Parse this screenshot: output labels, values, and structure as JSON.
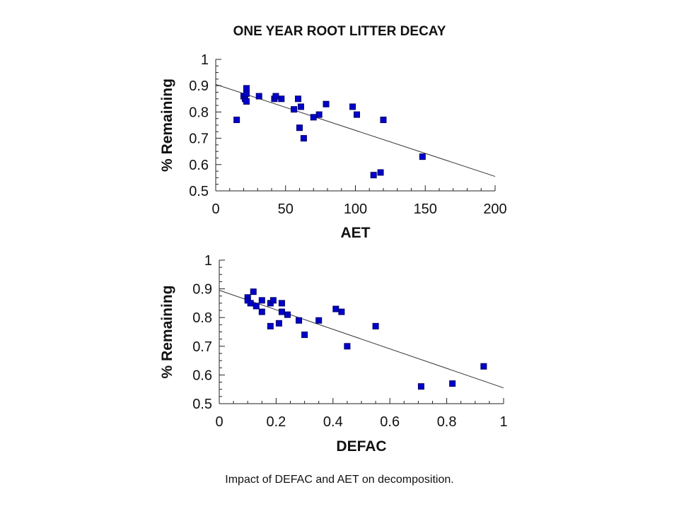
{
  "title": "ONE YEAR ROOT LITTER DECAY",
  "caption": "Impact of DEFAC and AET on decomposition.",
  "colors": {
    "marker": "#0000cc",
    "marker_edge": "#000066",
    "axis": "#222222"
  },
  "chart_data": [
    {
      "type": "scatter",
      "xlabel": "AET",
      "ylabel": "% Remaining",
      "xlim": [
        0,
        200
      ],
      "ylim": [
        0.5,
        1
      ],
      "xticks": [
        "0",
        "50",
        "100",
        "150",
        "200"
      ],
      "yticks": [
        "0.5",
        "0.6",
        "0.7",
        "0.8",
        "0.9",
        "1"
      ],
      "xtick_values": [
        0,
        50,
        100,
        150,
        200
      ],
      "ytick_values": [
        0.5,
        0.6,
        0.7,
        0.8,
        0.9,
        1
      ],
      "minor_x_step": 10,
      "minor_y_step": 0.025,
      "points": [
        [
          15,
          0.77
        ],
        [
          20,
          0.86
        ],
        [
          21,
          0.85
        ],
        [
          22,
          0.87
        ],
        [
          22,
          0.89
        ],
        [
          22,
          0.84
        ],
        [
          31,
          0.86
        ],
        [
          42,
          0.85
        ],
        [
          43,
          0.86
        ],
        [
          47,
          0.85
        ],
        [
          56,
          0.81
        ],
        [
          59,
          0.85
        ],
        [
          60,
          0.74
        ],
        [
          61,
          0.82
        ],
        [
          63,
          0.7
        ],
        [
          70,
          0.78
        ],
        [
          74,
          0.79
        ],
        [
          79,
          0.83
        ],
        [
          98,
          0.82
        ],
        [
          101,
          0.79
        ],
        [
          113,
          0.56
        ],
        [
          118,
          0.57
        ],
        [
          120,
          0.77
        ],
        [
          148,
          0.63
        ]
      ],
      "trend_line": [
        [
          0,
          0.905
        ],
        [
          200,
          0.555
        ]
      ]
    },
    {
      "type": "scatter",
      "xlabel": "DEFAC",
      "ylabel": "% Remaining",
      "xlim": [
        0,
        1
      ],
      "ylim": [
        0.5,
        1
      ],
      "xticks": [
        "0",
        "0.2",
        "0.4",
        "0.6",
        "0.8",
        "1"
      ],
      "yticks": [
        "0.5",
        "0.6",
        "0.7",
        "0.8",
        "0.9",
        "1"
      ],
      "xtick_values": [
        0,
        0.2,
        0.4,
        0.6,
        0.8,
        1
      ],
      "ytick_values": [
        0.5,
        0.6,
        0.7,
        0.8,
        0.9,
        1
      ],
      "minor_x_step": 0.05,
      "minor_y_step": 0.025,
      "points": [
        [
          0.1,
          0.87
        ],
        [
          0.1,
          0.86
        ],
        [
          0.11,
          0.85
        ],
        [
          0.12,
          0.89
        ],
        [
          0.13,
          0.84
        ],
        [
          0.15,
          0.86
        ],
        [
          0.15,
          0.82
        ],
        [
          0.18,
          0.85
        ],
        [
          0.18,
          0.77
        ],
        [
          0.19,
          0.86
        ],
        [
          0.21,
          0.78
        ],
        [
          0.22,
          0.85
        ],
        [
          0.22,
          0.82
        ],
        [
          0.24,
          0.81
        ],
        [
          0.28,
          0.79
        ],
        [
          0.3,
          0.74
        ],
        [
          0.35,
          0.79
        ],
        [
          0.41,
          0.83
        ],
        [
          0.43,
          0.82
        ],
        [
          0.45,
          0.7
        ],
        [
          0.55,
          0.77
        ],
        [
          0.71,
          0.56
        ],
        [
          0.82,
          0.57
        ],
        [
          0.93,
          0.63
        ]
      ],
      "trend_line": [
        [
          0,
          0.895
        ],
        [
          1,
          0.555
        ]
      ]
    }
  ]
}
